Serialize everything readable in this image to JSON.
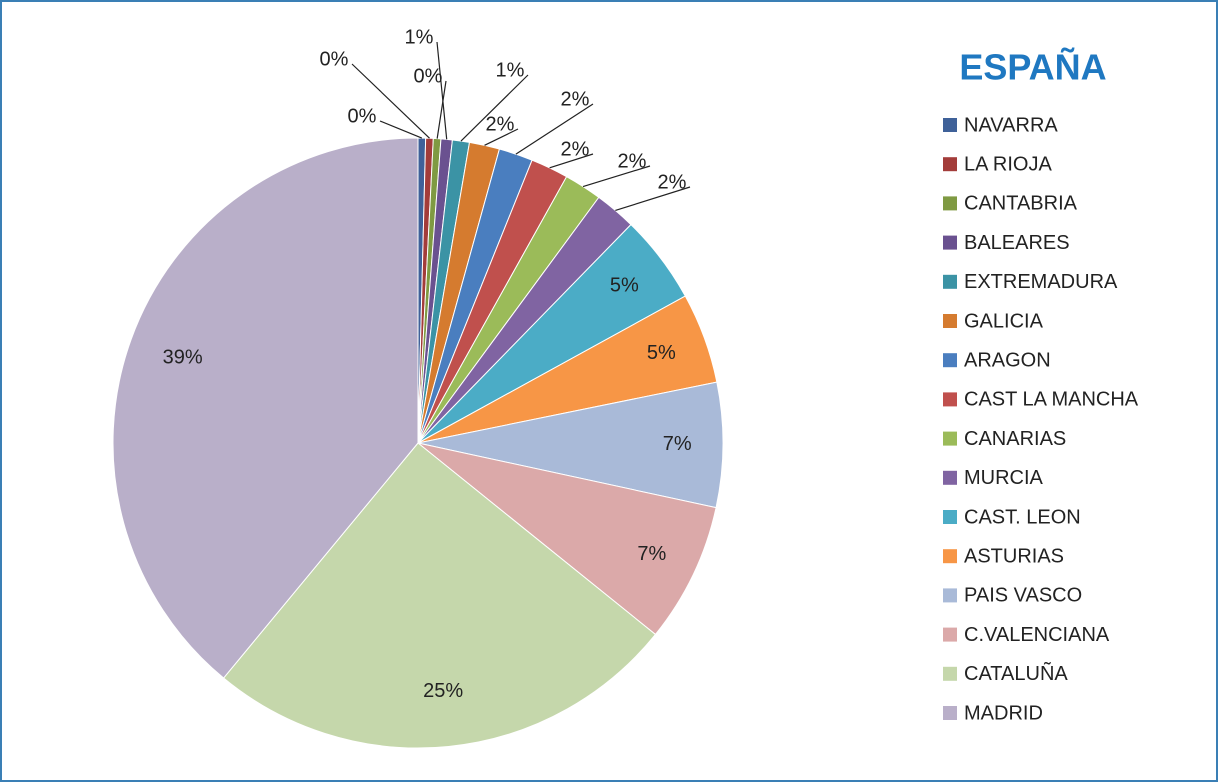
{
  "chart_data": {
    "type": "pie",
    "title": "ESPAÑA",
    "categories": [
      "NAVARRA",
      "LA RIOJA",
      "CANTABRIA",
      "BALEARES",
      "EXTREMADURA",
      "GALICIA",
      "ARAGON",
      "CAST LA MANCHA",
      "CANARIAS",
      "MURCIA",
      "CAST. LEON",
      "ASTURIAS",
      "PAIS VASCO",
      "C.VALENCIANA",
      "CATALUÑA",
      "MADRID"
    ],
    "values": [
      0.4,
      0.4,
      0.4,
      0.6,
      0.9,
      1.6,
      1.8,
      2.0,
      2.0,
      2.2,
      4.7,
      4.8,
      6.6,
      7.4,
      25.2,
      39.0
    ],
    "value_labels": [
      "0%",
      "0%",
      "0%",
      "1%",
      "1%",
      "2%",
      "2%",
      "2%",
      "2%",
      "2%",
      "5%",
      "5%",
      "7%",
      "7%",
      "25%",
      "39%"
    ],
    "colors": [
      "#3f6199",
      "#a33c3a",
      "#7f9a42",
      "#6a5190",
      "#3b93a5",
      "#d57b2f",
      "#4a7ebf",
      "#c0504d",
      "#9bbb59",
      "#8064a2",
      "#4bacc6",
      "#f79646",
      "#a9bad8",
      "#dba9a9",
      "#c5d7ab",
      "#b9afc9"
    ],
    "legend": "right"
  }
}
